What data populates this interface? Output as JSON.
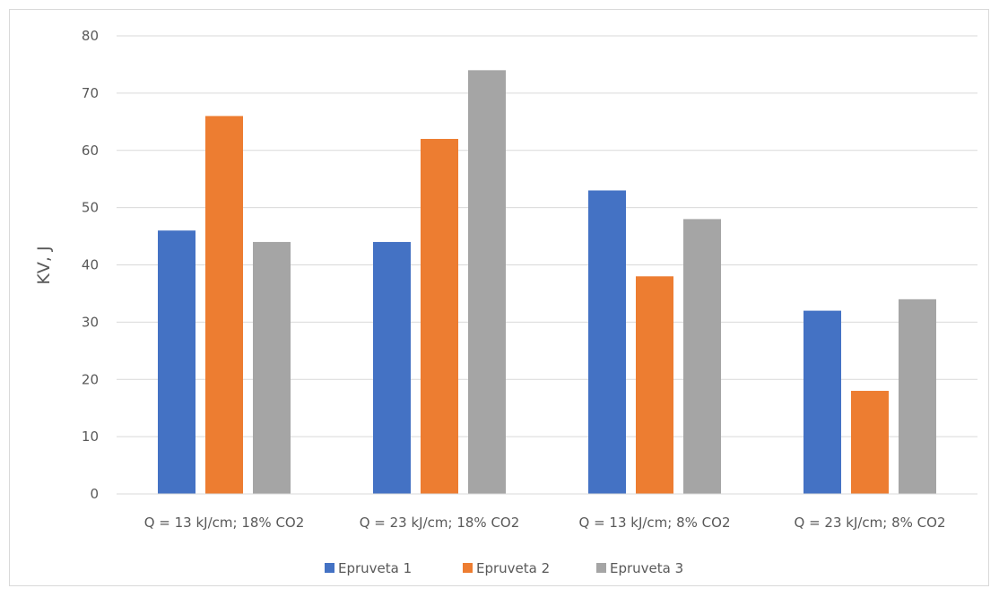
{
  "chart_data": {
    "type": "bar",
    "title": "",
    "xlabel": "",
    "ylabel": "KV, J",
    "ylim": [
      0,
      80
    ],
    "yticks": [
      0,
      10,
      20,
      30,
      40,
      50,
      60,
      70,
      80
    ],
    "grid": true,
    "legend_position": "bottom",
    "categories": [
      "Q = 13 kJ/cm; 18% CO2",
      "Q = 23 kJ/cm; 18% CO2",
      "Q = 13 kJ/cm; 8% CO2",
      "Q = 23 kJ/cm; 8% CO2"
    ],
    "series": [
      {
        "name": "Epruveta 1",
        "color": "#4472c4",
        "values": [
          46,
          44,
          53,
          32
        ]
      },
      {
        "name": "Epruveta 2",
        "color": "#ed7d31",
        "values": [
          66,
          62,
          38,
          18
        ]
      },
      {
        "name": "Epruveta 3",
        "color": "#a5a5a5",
        "values": [
          44,
          74,
          48,
          34
        ]
      }
    ]
  }
}
